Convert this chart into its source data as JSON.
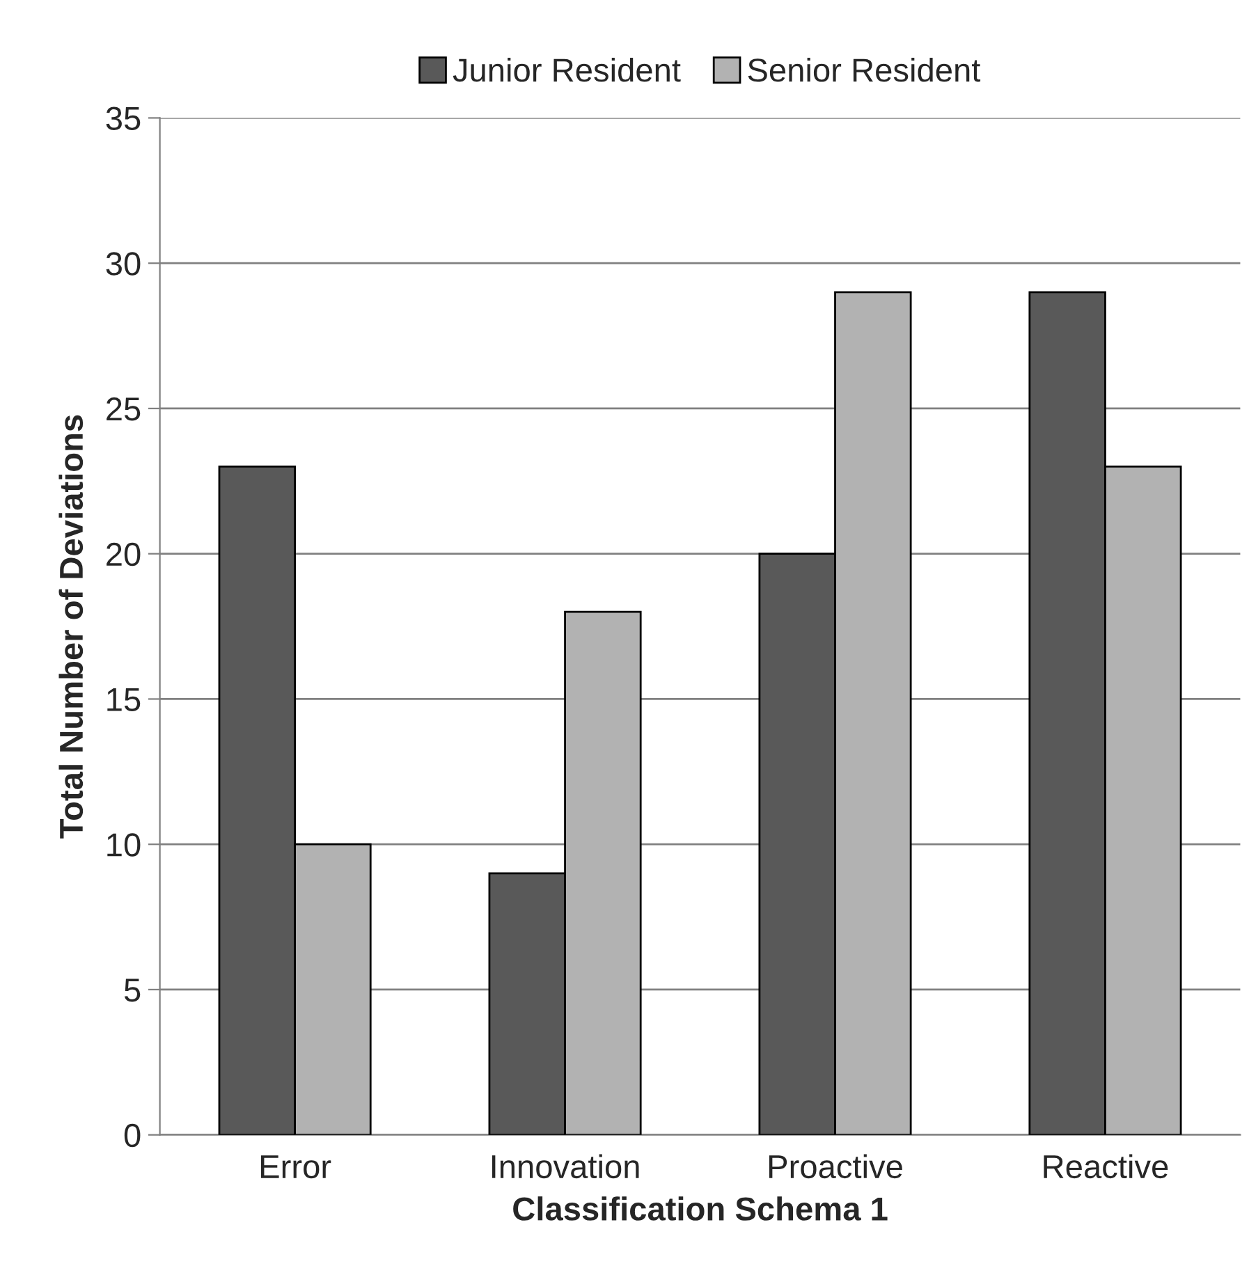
{
  "chart_data": {
    "type": "bar",
    "xlabel": "Classification Schema 1",
    "ylabel": "Total Number of Deviations",
    "categories": [
      "Error",
      "Innovation",
      "Proactive",
      "Reactive"
    ],
    "series": [
      {
        "name": "Junior Resident",
        "color": "#595959",
        "values": [
          23,
          9,
          20,
          29
        ]
      },
      {
        "name": "Senior Resident",
        "color": "#b2b2b2",
        "values": [
          10,
          18,
          29,
          23
        ]
      }
    ],
    "ylim": [
      0,
      35
    ],
    "yticks": [
      0,
      5,
      10,
      15,
      20,
      25,
      30,
      35
    ],
    "grid": "y",
    "legend": "top"
  }
}
